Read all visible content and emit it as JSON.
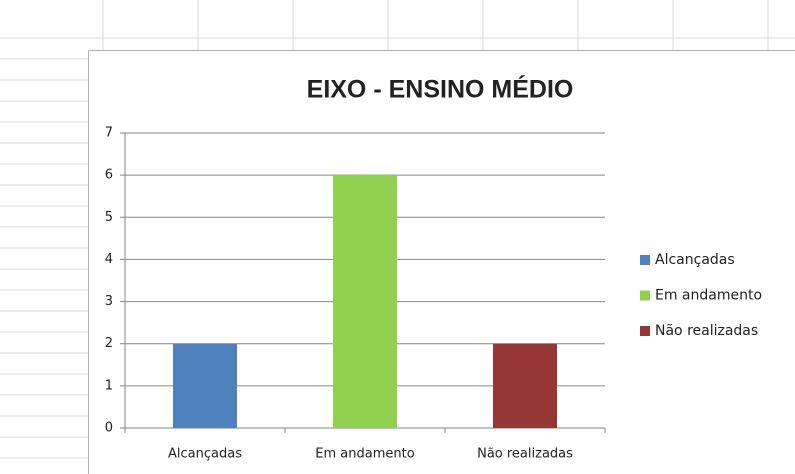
{
  "chart_data": {
    "type": "bar",
    "title": "EIXO - ENSINO MÉDIO",
    "categories": [
      "Alcançadas",
      "Em andamento",
      "Não realizadas"
    ],
    "values": [
      2,
      6,
      2
    ],
    "colors": [
      "#4f81bd",
      "#92d050",
      "#953735"
    ],
    "ylim": [
      0,
      7
    ],
    "yticks": [
      0,
      1,
      2,
      3,
      4,
      5,
      6,
      7
    ],
    "grid": true,
    "legend": "right"
  }
}
